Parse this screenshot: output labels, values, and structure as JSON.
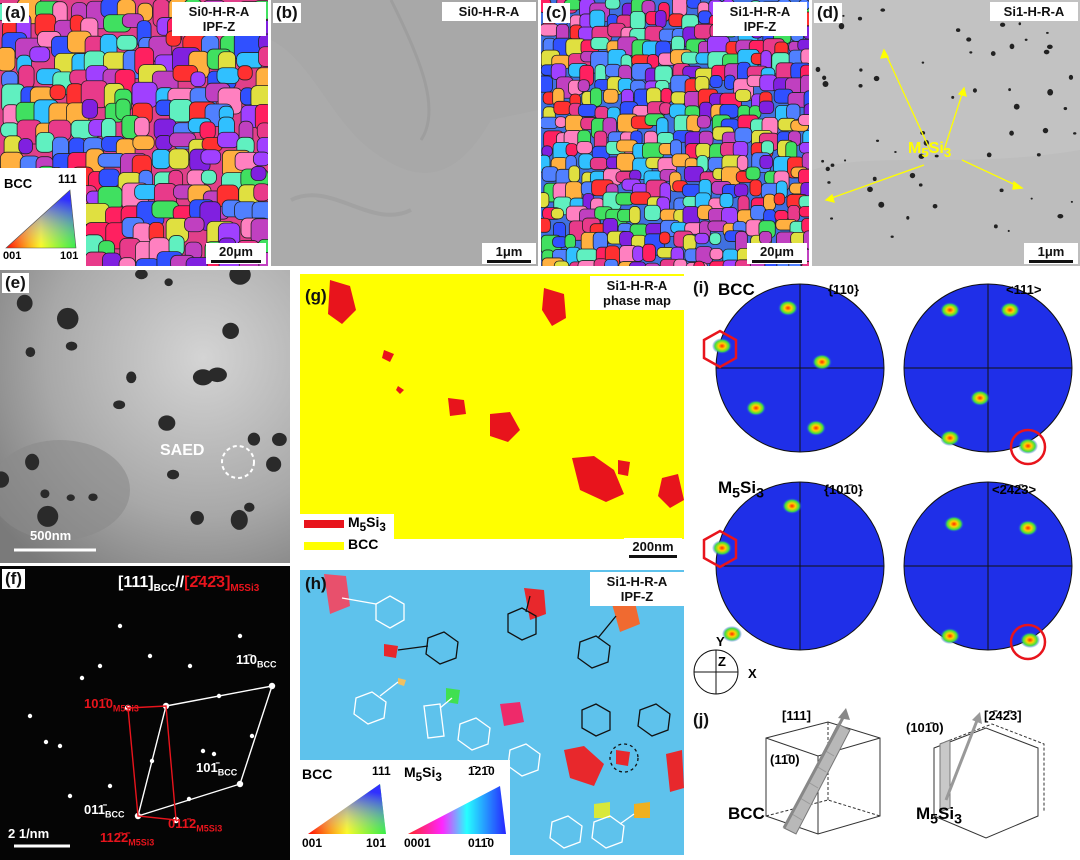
{
  "panels": {
    "a": {
      "label": "(a)",
      "tag_line1": "Si0-H-R-A",
      "tag_line2": "IPF-Z",
      "scale": "20μm",
      "legend": {
        "phase": "BCC",
        "c111": "111",
        "c001": "001",
        "c101": "101"
      }
    },
    "b": {
      "label": "(b)",
      "tag": "Si0-H-R-A",
      "scale": "1μm"
    },
    "c": {
      "label": "(c)",
      "tag_line1": "Si1-H-R-A",
      "tag_line2": "IPF-Z",
      "scale": "20μm"
    },
    "d": {
      "label": "(d)",
      "tag": "Si1-H-R-A",
      "scale": "1μm",
      "annotation": "M5Si3"
    },
    "e": {
      "label": "(e)",
      "saed": "SAED",
      "scale": "500nm"
    },
    "f": {
      "label": "(f)",
      "zone_bcc": "[111]BCC",
      "zone_sep": "//",
      "zone_m": "[2̄42̄3]M5Si3",
      "s1": "11̄0BCC",
      "s2": "101̄BCC",
      "s3": "011̄BCC",
      "s4": "101̄0M5Si3",
      "s5": "011̄2M5Si3",
      "s6": "112̄2̄M5Si3",
      "scale": "2 1/nm"
    },
    "g": {
      "label": "(g)",
      "tag_line1": "Si1-H-R-A",
      "tag_line2": "phase map",
      "scale": "200nm",
      "legend": [
        {
          "name": "M5Si3",
          "color": "#e8141c"
        },
        {
          "name": "BCC",
          "color": "#ffff00"
        }
      ]
    },
    "h": {
      "label": "(h)",
      "tag_line1": "Si1-H-R-A",
      "tag_line2": "IPF-Z",
      "legend_bcc": {
        "title": "BCC",
        "c111": "111",
        "c001": "001",
        "c101": "101"
      },
      "legend_m": {
        "title": "M5Si3",
        "top": "1̄21̄0",
        "left": "0001",
        "right": "011̄0"
      }
    },
    "i": {
      "label": "(i)",
      "row1_phase": "BCC",
      "row1_a": "{110}",
      "row1_b": "<111>",
      "row2_phase": "M5Si3",
      "row2_a": "{101̄0}",
      "row2_b": "<2̄42̄3>",
      "axes": {
        "y": "Y",
        "z": "Z",
        "x": "X"
      }
    },
    "j": {
      "label": "(j)",
      "b111": "[111]",
      "b110": "(11̄0)",
      "bcc": "BCC",
      "m_dir": "[2̄42̄3]",
      "m_plane": "(101̄0)",
      "m": "M5Si3"
    }
  }
}
